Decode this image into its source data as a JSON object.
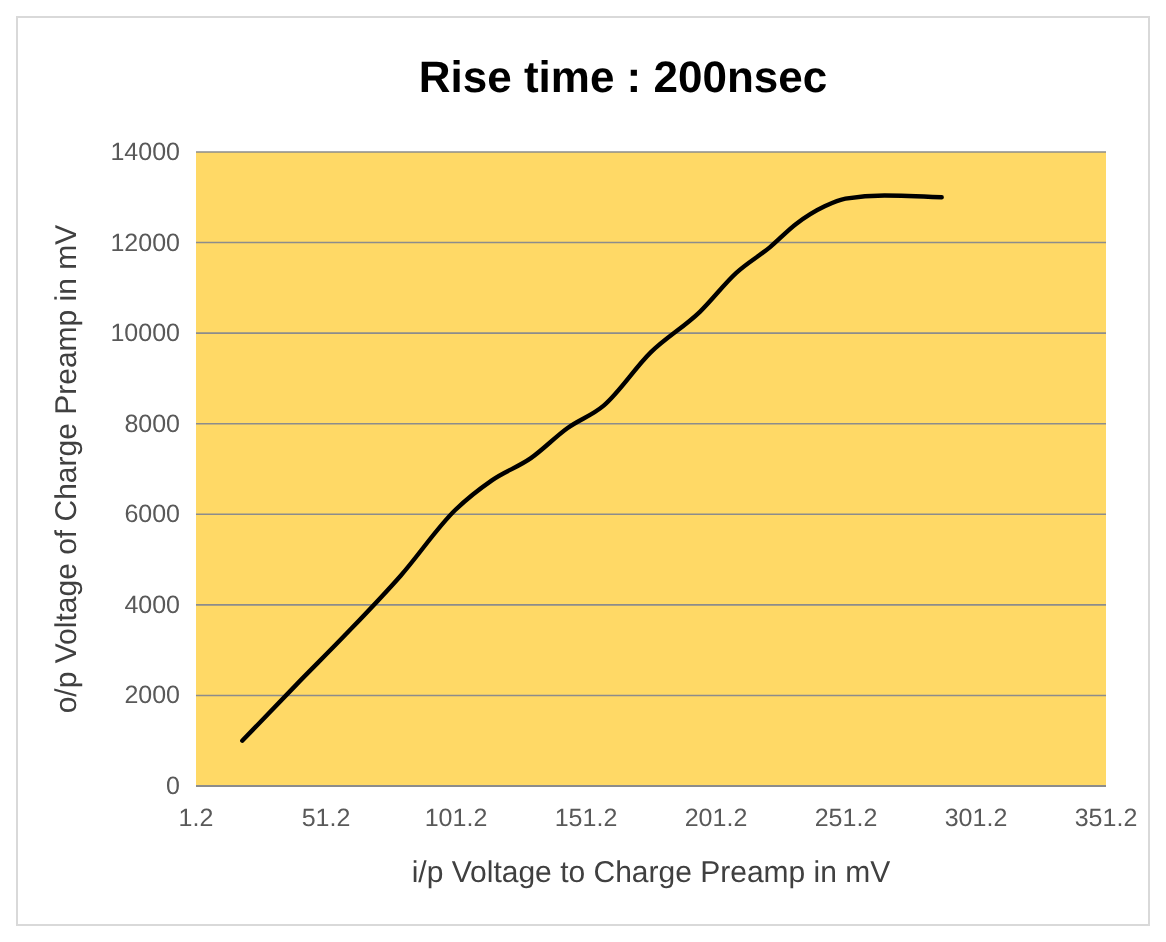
{
  "chart_data": {
    "type": "line",
    "title": "Rise time : 200nsec",
    "xlabel": "i/p Voltage to Charge Preamp in mV",
    "ylabel": "o/p Voltage of Charge Preamp in mV",
    "x": [
      19,
      40,
      59,
      80,
      101,
      115,
      130,
      144,
      158,
      176,
      195,
      209,
      222,
      232,
      243,
      251,
      266,
      288
    ],
    "series": [
      {
        "color": "#000000",
        "values": [
          1000,
          2250,
          3360,
          4650,
          6100,
          6750,
          7240,
          7900,
          8400,
          9570,
          10470,
          11330,
          11900,
          12410,
          12800,
          12970,
          13040,
          13000
        ]
      }
    ],
    "xlim": [
      1.2,
      351.2
    ],
    "xticks": [
      1.2,
      51.2,
      101.2,
      151.2,
      201.2,
      251.2,
      301.2,
      351.2
    ],
    "ylim": [
      0,
      14000
    ],
    "yticks": [
      0,
      2000,
      4000,
      6000,
      8000,
      10000,
      12000,
      14000
    ],
    "grid": "y",
    "marker": "none",
    "line_style": "solid"
  }
}
